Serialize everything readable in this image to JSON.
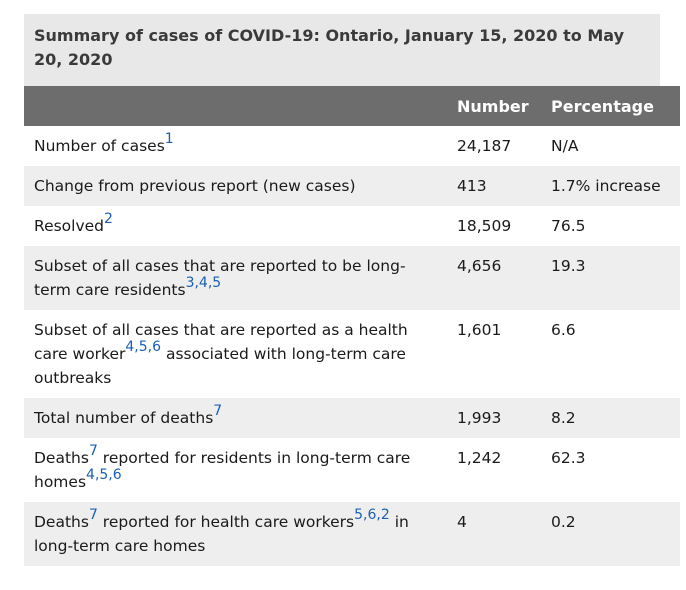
{
  "caption": "Summary of cases of COVID-19: Ontario, January 15, 2020 to May 20, 2020",
  "headers": {
    "description": "",
    "number": "Number",
    "percentage": "Percentage"
  },
  "rows": [
    {
      "label": "Number of cases",
      "after": "",
      "label2": "",
      "sup1": "1",
      "sup2": "",
      "number": "24,187",
      "percentage": "N/A"
    },
    {
      "label": "Change from previous report (new cases)",
      "after": "",
      "label2": "",
      "sup1": "",
      "sup2": "",
      "number": "413",
      "percentage": "1.7% increase"
    },
    {
      "label": "Resolved",
      "after": "",
      "label2": "",
      "sup1": "2",
      "sup2": "",
      "number": "18,509",
      "percentage": "76.5"
    },
    {
      "label": "Subset of all cases that are reported to be long-term care residents",
      "after": "",
      "label2": "",
      "sup1": "3,4,5",
      "sup2": "",
      "number": "4,656",
      "percentage": "19.3"
    },
    {
      "label": "Subset of all cases that are reported as a health care worker",
      "sup1": "4,5,6",
      "after": " associated with long-term care outbreaks",
      "label2": "",
      "sup2": "",
      "number": "1,601",
      "percentage": "6.6"
    },
    {
      "label": "Total number of deaths",
      "after": "",
      "label2": "",
      "sup1": "7",
      "sup2": "",
      "number": "1,993",
      "percentage": "8.2"
    },
    {
      "label": "Deaths",
      "sup1": "7",
      "label2": " reported for residents in long-term care homes",
      "sup2": "4,5,6",
      "after": "",
      "number": "1,242",
      "percentage": "62.3"
    },
    {
      "label": "Deaths",
      "sup1": "7",
      "label2": " reported for health care workers",
      "sup2": "5,6,2",
      "after": " in long-term care homes",
      "number": "4",
      "percentage": "0.2"
    }
  ]
}
